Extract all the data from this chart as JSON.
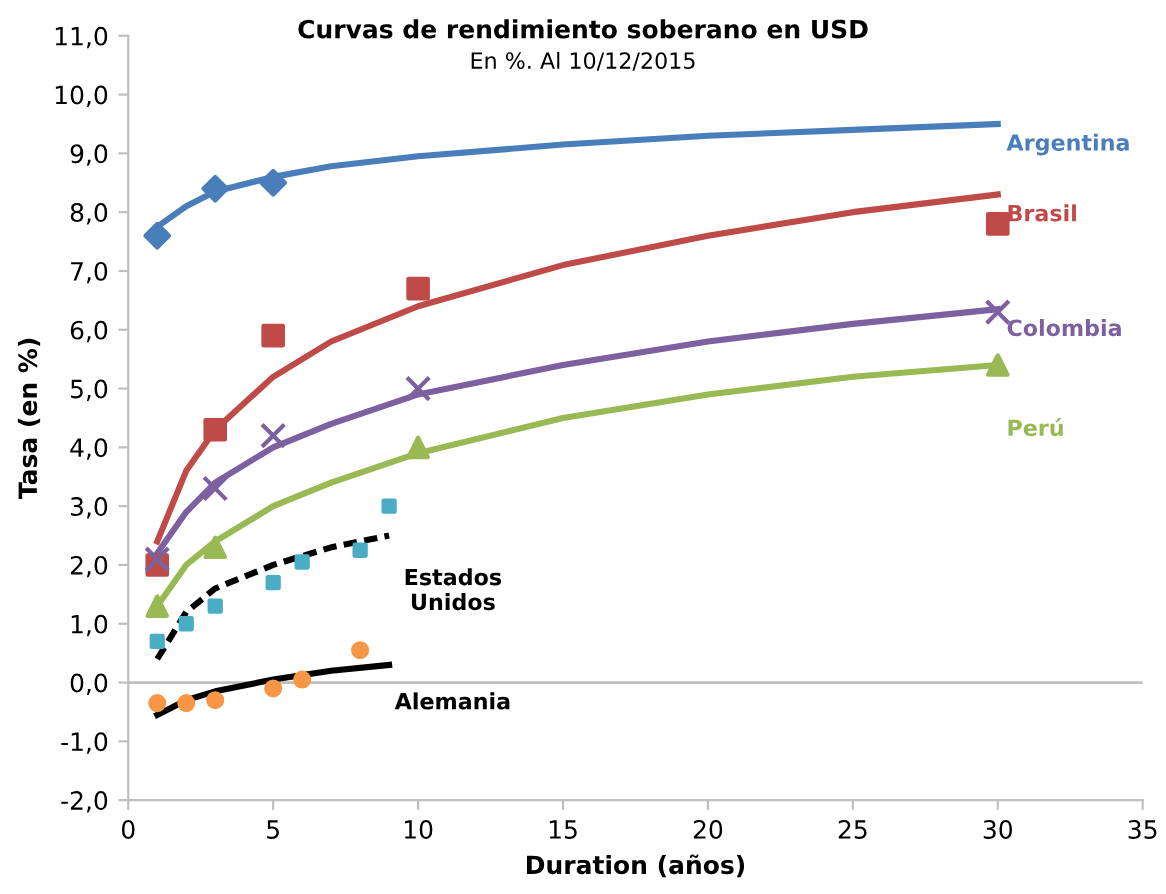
{
  "chart_data": {
    "type": "scatter",
    "title": "Curvas de rendimiento soberano en USD",
    "subtitle": "En %. Al 10/12/2015",
    "xlabel": "Duration (años)",
    "ylabel": "Tasa (en %)",
    "xlim": [
      0,
      35
    ],
    "xticks": [
      0,
      5,
      10,
      15,
      20,
      25,
      30,
      35
    ],
    "ylim": [
      -2,
      11
    ],
    "yticks": [
      {
        "value": -2,
        "label": "-2,0"
      },
      {
        "value": -1,
        "label": "-1,0"
      },
      {
        "value": 0,
        "label": "0,0"
      },
      {
        "value": 1,
        "label": "1,0"
      },
      {
        "value": 2,
        "label": "2,0"
      },
      {
        "value": 3,
        "label": "3,0"
      },
      {
        "value": 4,
        "label": "4,0"
      },
      {
        "value": 5,
        "label": "5,0"
      },
      {
        "value": 6,
        "label": "6,0"
      },
      {
        "value": 7,
        "label": "7,0"
      },
      {
        "value": 8,
        "label": "8,0"
      },
      {
        "value": 9,
        "label": "9,0"
      },
      {
        "value": 10,
        "label": "10,0"
      },
      {
        "value": 11,
        "label": "11,0"
      }
    ],
    "grid": false,
    "legend": false,
    "ref_lines": [
      {
        "axis": "y",
        "value": 0,
        "color": "#bfbfbf"
      }
    ],
    "series": [
      {
        "name": "Argentina",
        "marker": "diamond",
        "color": "#4a7ebb",
        "x": [
          1,
          3,
          5
        ],
        "values": [
          7.6,
          8.4,
          8.5
        ]
      },
      {
        "type": "line",
        "marker": "none",
        "line_style": "solid",
        "color": "#4a7ebb",
        "x": [
          1,
          2,
          3,
          5,
          7,
          10,
          15,
          20,
          25,
          30
        ],
        "values": [
          7.75,
          8.1,
          8.35,
          8.6,
          8.78,
          8.95,
          9.15,
          9.3,
          9.4,
          9.5
        ]
      },
      {
        "name": "Brasil",
        "marker": "square",
        "color": "#be4b48",
        "x": [
          1,
          3,
          5,
          10,
          30
        ],
        "values": [
          2.0,
          4.3,
          5.9,
          6.7,
          7.8
        ]
      },
      {
        "type": "line",
        "marker": "none",
        "line_style": "solid",
        "color": "#be4b48",
        "x": [
          1,
          2,
          3,
          5,
          7,
          10,
          15,
          20,
          25,
          30
        ],
        "values": [
          2.4,
          3.6,
          4.3,
          5.2,
          5.8,
          6.4,
          7.1,
          7.6,
          8.0,
          8.3
        ]
      },
      {
        "name": "Colombia",
        "marker": "cross",
        "color": "#7d60a0",
        "x": [
          1,
          3,
          5,
          10,
          30
        ],
        "values": [
          2.1,
          3.3,
          4.2,
          5.0,
          6.3
        ]
      },
      {
        "type": "line",
        "marker": "none",
        "line_style": "solid",
        "color": "#7d60a0",
        "x": [
          1,
          2,
          3,
          5,
          7,
          10,
          15,
          20,
          25,
          30
        ],
        "values": [
          2.2,
          2.9,
          3.4,
          4.0,
          4.4,
          4.9,
          5.4,
          5.8,
          6.1,
          6.35
        ]
      },
      {
        "name": "Perú",
        "marker": "triangle",
        "color": "#98b954",
        "x": [
          1,
          3,
          10,
          30
        ],
        "values": [
          1.3,
          2.3,
          4.0,
          5.4
        ]
      },
      {
        "type": "line",
        "marker": "none",
        "line_style": "solid",
        "color": "#98b954",
        "x": [
          1,
          2,
          3,
          5,
          7,
          10,
          15,
          20,
          25,
          30
        ],
        "values": [
          1.3,
          2.0,
          2.4,
          3.0,
          3.4,
          3.9,
          4.5,
          4.9,
          5.2,
          5.4
        ]
      },
      {
        "name": "Estados\nUnidos",
        "marker": "square",
        "color": "#4bacc6",
        "x": [
          1,
          2,
          3,
          5,
          6,
          8,
          9
        ],
        "values": [
          0.7,
          1.0,
          1.3,
          1.7,
          2.05,
          2.25,
          3.0
        ]
      },
      {
        "type": "line",
        "marker": "none",
        "line_style": "dashed",
        "color": "#000000",
        "x": [
          1,
          2,
          3,
          5,
          7,
          9
        ],
        "values": [
          0.4,
          1.2,
          1.6,
          2.0,
          2.3,
          2.5
        ]
      },
      {
        "name": "Alemania",
        "marker": "circle",
        "color": "#f79646",
        "x": [
          1,
          2,
          3,
          5,
          6,
          8
        ],
        "values": [
          -0.35,
          -0.35,
          -0.3,
          -0.1,
          0.05,
          0.55
        ]
      },
      {
        "type": "line",
        "marker": "none",
        "line_style": "solid",
        "color": "#000000",
        "x": [
          1,
          2,
          3,
          5,
          7,
          9
        ],
        "values": [
          -0.55,
          -0.3,
          -0.15,
          0.05,
          0.2,
          0.3
        ]
      }
    ]
  }
}
